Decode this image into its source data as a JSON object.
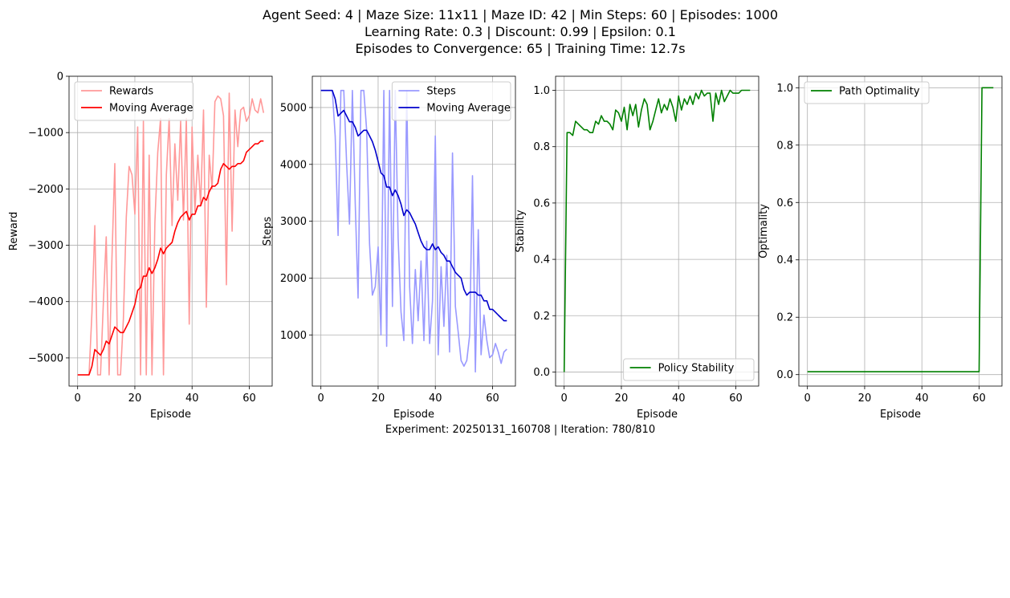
{
  "figure": {
    "title_lines": [
      "Agent Seed: 4 | Maze Size: 11x11 | Maze ID: 42 | Min Steps: 60 | Episodes: 1000",
      "Learning Rate: 0.3 | Discount: 0.99 | Epsilon: 0.1",
      "Episodes to Convergence: 65 | Training Time: 12.7s"
    ],
    "footer": "Experiment: 20250131_160708 | Iteration: 780/810"
  },
  "colors": {
    "rewards": "#ff9999",
    "rewards_ma": "#ff0000",
    "steps": "#9999ff",
    "steps_ma": "#0000cc",
    "green": "#008000",
    "grid": "#b0b0b0"
  },
  "chart_data": [
    {
      "type": "line",
      "xlabel": "Episode",
      "ylabel": "Reward",
      "xlim": [
        -3,
        68
      ],
      "ylim": [
        -5500,
        0
      ],
      "xticks": [
        0,
        20,
        40,
        60
      ],
      "yticks": [
        0,
        -1000,
        -2000,
        -3000,
        -4000,
        -5000
      ],
      "yticklabels": [
        "0",
        "−1000",
        "−2000",
        "−3000",
        "−4000",
        "−5000"
      ],
      "grid": true,
      "legend_position": "top-left",
      "series": [
        {
          "name": "Rewards",
          "color": "#ff9999",
          "x": [
            0,
            1,
            2,
            3,
            4,
            5,
            6,
            7,
            8,
            9,
            10,
            11,
            12,
            13,
            14,
            15,
            16,
            17,
            18,
            19,
            20,
            21,
            22,
            23,
            24,
            25,
            26,
            27,
            28,
            29,
            30,
            31,
            32,
            33,
            34,
            35,
            36,
            37,
            38,
            39,
            40,
            41,
            42,
            43,
            44,
            45,
            46,
            47,
            48,
            49,
            50,
            51,
            52,
            53,
            54,
            55,
            56,
            57,
            58,
            59,
            60,
            61,
            62,
            63,
            64,
            65
          ],
          "y": [
            -5300,
            -5300,
            -5300,
            -5300,
            -5300,
            -4200,
            -2650,
            -5300,
            -5300,
            -4000,
            -2850,
            -5300,
            -3200,
            -1550,
            -5300,
            -5300,
            -4300,
            -2500,
            -1600,
            -1750,
            -2450,
            -900,
            -5300,
            -800,
            -5300,
            -1400,
            -5300,
            -2600,
            -1350,
            -750,
            -5300,
            -1750,
            -750,
            -2650,
            -1200,
            -2200,
            -800,
            -2550,
            -750,
            -4400,
            -900,
            -2400,
            -1400,
            -2300,
            -600,
            -4100,
            -1400,
            -2000,
            -450,
            -350,
            -400,
            -700,
            -3700,
            -300,
            -2750,
            -600,
            -1250,
            -600,
            -550,
            -800,
            -700,
            -400,
            -600,
            -650,
            -400,
            -650
          ]
        },
        {
          "name": "Moving Average",
          "color": "#ff0000",
          "x": [
            0,
            1,
            2,
            3,
            4,
            5,
            6,
            7,
            8,
            9,
            10,
            11,
            12,
            13,
            14,
            15,
            16,
            17,
            18,
            19,
            20,
            21,
            22,
            23,
            24,
            25,
            26,
            27,
            28,
            29,
            30,
            31,
            32,
            33,
            34,
            35,
            36,
            37,
            38,
            39,
            40,
            41,
            42,
            43,
            44,
            45,
            46,
            47,
            48,
            49,
            50,
            51,
            52,
            53,
            54,
            55,
            56,
            57,
            58,
            59,
            60,
            61,
            62,
            63,
            64,
            65
          ],
          "y": [
            -5300,
            -5300,
            -5300,
            -5300,
            -5300,
            -5150,
            -4850,
            -4900,
            -4950,
            -4850,
            -4700,
            -4750,
            -4600,
            -4450,
            -4500,
            -4550,
            -4550,
            -4450,
            -4350,
            -4200,
            -4050,
            -3800,
            -3750,
            -3550,
            -3550,
            -3400,
            -3500,
            -3400,
            -3250,
            -3050,
            -3150,
            -3050,
            -3000,
            -2950,
            -2750,
            -2600,
            -2500,
            -2450,
            -2400,
            -2550,
            -2450,
            -2450,
            -2300,
            -2300,
            -2150,
            -2200,
            -2050,
            -1950,
            -1950,
            -1900,
            -1650,
            -1550,
            -1600,
            -1650,
            -1600,
            -1600,
            -1550,
            -1550,
            -1500,
            -1350,
            -1300,
            -1250,
            -1200,
            -1200,
            -1150,
            -1150
          ]
        }
      ]
    },
    {
      "type": "line",
      "xlabel": "Episode",
      "ylabel": "Steps",
      "xlim": [
        -3,
        68
      ],
      "ylim": [
        100,
        5550
      ],
      "xticks": [
        0,
        20,
        40,
        60
      ],
      "yticks": [
        1000,
        2000,
        3000,
        4000,
        5000
      ],
      "yticklabels": [
        "1000",
        "2000",
        "3000",
        "4000",
        "5000"
      ],
      "grid": true,
      "legend_position": "top-right",
      "series": [
        {
          "name": "Steps",
          "color": "#9999ff",
          "x": [
            0,
            1,
            2,
            3,
            4,
            5,
            6,
            7,
            8,
            9,
            10,
            11,
            12,
            13,
            14,
            15,
            16,
            17,
            18,
            19,
            20,
            21,
            22,
            23,
            24,
            25,
            26,
            27,
            28,
            29,
            30,
            31,
            32,
            33,
            34,
            35,
            36,
            37,
            38,
            39,
            40,
            41,
            42,
            43,
            44,
            45,
            46,
            47,
            48,
            49,
            50,
            51,
            52,
            53,
            54,
            55,
            56,
            57,
            58,
            59,
            60,
            61,
            62,
            63,
            64,
            65
          ],
          "y": [
            5300,
            5300,
            5300,
            5300,
            5300,
            4500,
            2750,
            5300,
            5300,
            4000,
            2950,
            5300,
            3300,
            1650,
            5300,
            5300,
            4600,
            2600,
            1700,
            1850,
            2550,
            1000,
            5300,
            800,
            5300,
            1500,
            5300,
            2700,
            1400,
            900,
            5300,
            1850,
            850,
            2150,
            1250,
            2300,
            900,
            2650,
            850,
            1600,
            4500,
            650,
            2200,
            1150,
            2400,
            700,
            4200,
            1500,
            1050,
            550,
            450,
            550,
            1000,
            3800,
            350,
            2850,
            650,
            1350,
            900,
            600,
            650,
            850,
            700,
            500,
            700,
            750
          ]
        },
        {
          "name": "Moving Average",
          "color": "#0000cc",
          "x": [
            0,
            1,
            2,
            3,
            4,
            5,
            6,
            7,
            8,
            9,
            10,
            11,
            12,
            13,
            14,
            15,
            16,
            17,
            18,
            19,
            20,
            21,
            22,
            23,
            24,
            25,
            26,
            27,
            28,
            29,
            30,
            31,
            32,
            33,
            34,
            35,
            36,
            37,
            38,
            39,
            40,
            41,
            42,
            43,
            44,
            45,
            46,
            47,
            48,
            49,
            50,
            51,
            52,
            53,
            54,
            55,
            56,
            57,
            58,
            59,
            60,
            61,
            62,
            63,
            64,
            65
          ],
          "y": [
            5300,
            5300,
            5300,
            5300,
            5300,
            5150,
            4850,
            4900,
            4950,
            4850,
            4750,
            4750,
            4650,
            4500,
            4550,
            4600,
            4600,
            4500,
            4400,
            4250,
            4050,
            3850,
            3800,
            3600,
            3600,
            3450,
            3550,
            3450,
            3300,
            3100,
            3200,
            3150,
            3050,
            2950,
            2800,
            2650,
            2550,
            2500,
            2500,
            2600,
            2500,
            2550,
            2450,
            2400,
            2300,
            2300,
            2200,
            2100,
            2050,
            2000,
            1800,
            1700,
            1750,
            1750,
            1750,
            1700,
            1700,
            1600,
            1600,
            1450,
            1450,
            1400,
            1350,
            1300,
            1250,
            1250
          ]
        }
      ]
    },
    {
      "type": "line",
      "xlabel": "Episode",
      "ylabel": "Stability",
      "xlim": [
        -3,
        68
      ],
      "ylim": [
        -0.05,
        1.05
      ],
      "xticks": [
        0,
        20,
        40,
        60
      ],
      "yticks": [
        0.0,
        0.2,
        0.4,
        0.6,
        0.8,
        1.0
      ],
      "yticklabels": [
        "0.0",
        "0.2",
        "0.4",
        "0.6",
        "0.8",
        "1.0"
      ],
      "grid": true,
      "legend_position": "bottom-right",
      "series": [
        {
          "name": "Policy Stability",
          "color": "#008000",
          "x": [
            0,
            1,
            2,
            3,
            4,
            5,
            6,
            7,
            8,
            9,
            10,
            11,
            12,
            13,
            14,
            15,
            16,
            17,
            18,
            19,
            20,
            21,
            22,
            23,
            24,
            25,
            26,
            27,
            28,
            29,
            30,
            31,
            32,
            33,
            34,
            35,
            36,
            37,
            38,
            39,
            40,
            41,
            42,
            43,
            44,
            45,
            46,
            47,
            48,
            49,
            50,
            51,
            52,
            53,
            54,
            55,
            56,
            57,
            58,
            59,
            60,
            61,
            62,
            63,
            64,
            65
          ],
          "y": [
            0.0,
            0.85,
            0.85,
            0.84,
            0.89,
            0.88,
            0.87,
            0.86,
            0.86,
            0.85,
            0.85,
            0.89,
            0.88,
            0.91,
            0.89,
            0.89,
            0.88,
            0.86,
            0.93,
            0.92,
            0.89,
            0.94,
            0.86,
            0.95,
            0.91,
            0.95,
            0.87,
            0.93,
            0.97,
            0.95,
            0.86,
            0.89,
            0.93,
            0.97,
            0.92,
            0.95,
            0.93,
            0.97,
            0.94,
            0.89,
            0.98,
            0.93,
            0.97,
            0.95,
            0.98,
            0.95,
            0.99,
            0.97,
            1.0,
            0.98,
            0.99,
            0.99,
            0.89,
            0.99,
            0.95,
            1.0,
            0.96,
            0.98,
            1.0,
            0.99,
            0.99,
            0.99,
            1.0,
            1.0,
            1.0,
            1.0
          ]
        }
      ]
    },
    {
      "type": "line",
      "xlabel": "Episode",
      "ylabel": "Optimality",
      "xlim": [
        -3,
        68
      ],
      "ylim": [
        -0.04,
        1.04
      ],
      "xticks": [
        0,
        20,
        40,
        60
      ],
      "yticks": [
        0.0,
        0.2,
        0.4,
        0.6,
        0.8,
        1.0
      ],
      "yticklabels": [
        "0.0",
        "0.2",
        "0.4",
        "0.6",
        "0.8",
        "1.0"
      ],
      "grid": true,
      "legend_position": "top-left",
      "series": [
        {
          "name": "Path Optimality",
          "color": "#008000",
          "x": [
            0,
            59,
            60,
            61,
            62,
            63,
            64,
            65
          ],
          "y": [
            0.01,
            0.01,
            0.01,
            1.0,
            1.0,
            1.0,
            1.0,
            1.0
          ]
        }
      ]
    }
  ]
}
